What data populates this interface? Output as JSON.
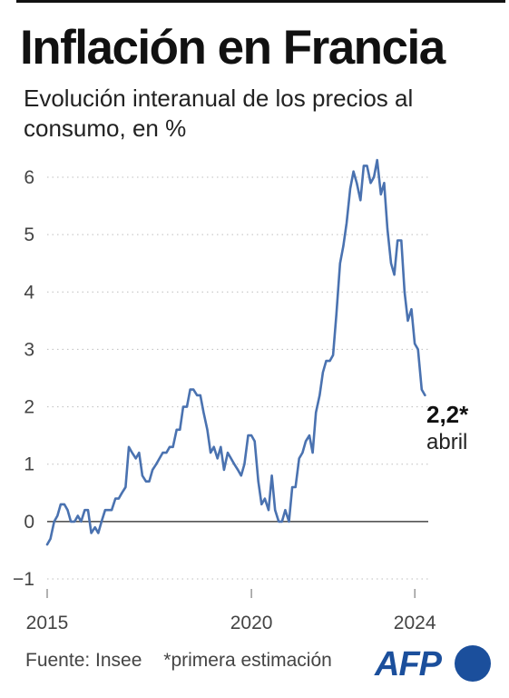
{
  "header": {
    "title": "Inflación en Francia",
    "subtitle": "Evolución interanual de los precios al consumo, en %"
  },
  "chart_data": {
    "type": "line",
    "title": "Inflación en Francia",
    "subtitle": "Evolución interanual de los precios al consumo, en %",
    "xlabel": "",
    "ylabel": "",
    "ylim": [
      -1,
      6.5
    ],
    "xlim": [
      2015,
      2024.33
    ],
    "yticks": [
      -1,
      0,
      1,
      2,
      3,
      4,
      5,
      6
    ],
    "ytick_labels": [
      "−1",
      "0",
      "1",
      "2",
      "3",
      "4",
      "5",
      "6"
    ],
    "xticks": [
      2015,
      2020,
      2024
    ],
    "xtick_labels": [
      "2015",
      "2020",
      "2024"
    ],
    "grid": "horizontal dotted",
    "line_color": "#4a72b0",
    "annotation": {
      "value": "2,2*",
      "label": "abril"
    },
    "series": [
      {
        "x": [
          2015.0,
          2015.08,
          2015.17,
          2015.25,
          2015.33,
          2015.42,
          2015.5,
          2015.58,
          2015.67,
          2015.75,
          2015.83,
          2015.92,
          2016.0,
          2016.08,
          2016.17,
          2016.25,
          2016.33,
          2016.42,
          2016.5,
          2016.58,
          2016.67,
          2016.75,
          2016.83,
          2016.92,
          2017.0,
          2017.08,
          2017.17,
          2017.25,
          2017.33,
          2017.42,
          2017.5,
          2017.58,
          2017.67,
          2017.75,
          2017.83,
          2017.92,
          2018.0,
          2018.08,
          2018.17,
          2018.25,
          2018.33,
          2018.42,
          2018.5,
          2018.58,
          2018.67,
          2018.75,
          2018.83,
          2018.92,
          2019.0,
          2019.08,
          2019.17,
          2019.25,
          2019.33,
          2019.42,
          2019.5,
          2019.58,
          2019.67,
          2019.75,
          2019.83,
          2019.92,
          2020.0,
          2020.08,
          2020.17,
          2020.25,
          2020.33,
          2020.42,
          2020.5,
          2020.58,
          2020.67,
          2020.75,
          2020.83,
          2020.92,
          2021.0,
          2021.08,
          2021.17,
          2021.25,
          2021.33,
          2021.42,
          2021.5,
          2021.58,
          2021.67,
          2021.75,
          2021.83,
          2021.92,
          2022.0,
          2022.08,
          2022.17,
          2022.25,
          2022.33,
          2022.42,
          2022.5,
          2022.58,
          2022.67,
          2022.75,
          2022.83,
          2022.92,
          2023.0,
          2023.08,
          2023.17,
          2023.25,
          2023.33,
          2023.42,
          2023.5,
          2023.58,
          2023.67,
          2023.75,
          2023.83,
          2023.92,
          2024.0,
          2024.08,
          2024.17,
          2024.25
        ],
        "y": [
          -0.4,
          -0.3,
          0.0,
          0.1,
          0.3,
          0.3,
          0.2,
          0.0,
          0.0,
          0.1,
          0.0,
          0.2,
          0.2,
          -0.2,
          -0.1,
          -0.2,
          0.0,
          0.2,
          0.2,
          0.2,
          0.4,
          0.4,
          0.5,
          0.6,
          1.3,
          1.2,
          1.1,
          1.2,
          0.8,
          0.7,
          0.7,
          0.9,
          1.0,
          1.1,
          1.2,
          1.2,
          1.3,
          1.3,
          1.6,
          1.6,
          2.0,
          2.0,
          2.3,
          2.3,
          2.2,
          2.2,
          1.9,
          1.6,
          1.2,
          1.3,
          1.1,
          1.3,
          0.9,
          1.2,
          1.1,
          1.0,
          0.9,
          0.8,
          1.0,
          1.5,
          1.5,
          1.4,
          0.7,
          0.3,
          0.4,
          0.2,
          0.8,
          0.2,
          0.0,
          0.0,
          0.2,
          0.0,
          0.6,
          0.6,
          1.1,
          1.2,
          1.4,
          1.5,
          1.2,
          1.9,
          2.2,
          2.6,
          2.8,
          2.8,
          2.9,
          3.6,
          4.5,
          4.8,
          5.2,
          5.8,
          6.1,
          5.9,
          5.6,
          6.2,
          6.2,
          5.9,
          6.0,
          6.3,
          5.7,
          5.9,
          5.1,
          4.5,
          4.3,
          4.9,
          4.9,
          4.0,
          3.5,
          3.7,
          3.1,
          3.0,
          2.3,
          2.2
        ]
      }
    ]
  },
  "footer": {
    "source": "Fuente: Insee",
    "note": "*primera estimación",
    "logo_text": "AFP",
    "logo_color": "#1b4f9c"
  }
}
